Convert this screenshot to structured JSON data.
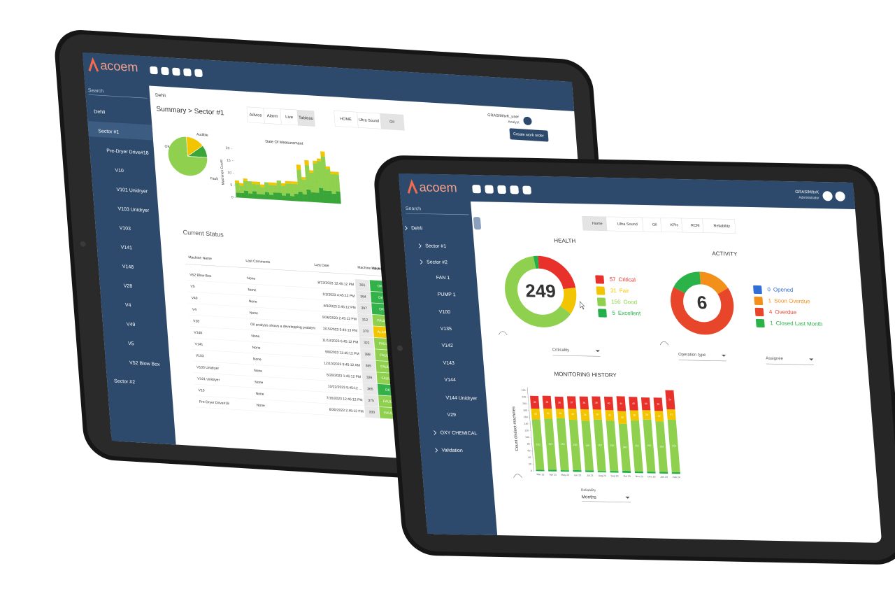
{
  "back": {
    "logo": "acoem",
    "search": "Search",
    "sidebar": [
      "Dehli",
      "Sector #1",
      "Pre-Dryer Drive#18",
      "V10",
      "V101 Unidryer",
      "V103 Unidryer",
      "V103",
      "V141",
      "V148",
      "V28",
      "V4",
      "V49",
      "V5",
      "V52 Blow Box",
      "Sector #2"
    ],
    "breadcrumb": "Dehli",
    "title": "Summary > Sector #1",
    "tabs": [
      "Advice",
      "Alarm",
      "Live",
      "Tableau"
    ],
    "views": [
      "HOME",
      "Ultra Sound",
      "Oil"
    ],
    "user": "GRASIM/tvK_user",
    "role": "Analyst",
    "button": "Create work order",
    "pie": {
      "type": "pie",
      "labels": [
        "Audible",
        "OK",
        "Fault"
      ],
      "values": [
        15,
        10,
        75
      ],
      "colors": [
        "#f2c500",
        "#3aa63a",
        "#8fd14f"
      ]
    },
    "area_chart": {
      "type": "bar",
      "title": "Date Of Measurement",
      "ylabel": "Machines Count",
      "ylim": [
        0,
        20
      ],
      "yticks": [
        0,
        5,
        10,
        15,
        20
      ],
      "series": [
        {
          "color": "#3aa63a",
          "values": [
            2,
            2,
            3,
            2,
            3,
            2,
            2,
            3,
            2,
            3,
            3,
            2,
            3,
            2,
            3,
            4,
            3,
            5,
            4,
            4,
            6,
            5,
            5,
            4,
            5
          ]
        },
        {
          "color": "#8fd14f",
          "values": [
            4,
            3,
            4,
            5,
            3,
            4,
            3,
            4,
            4,
            3,
            5,
            4,
            4,
            5,
            4,
            9,
            6,
            10,
            8,
            12,
            11,
            14,
            9,
            8,
            7
          ]
        },
        {
          "color": "#f2c500",
          "values": [
            1,
            1,
            1,
            0,
            1,
            1,
            1,
            0,
            1,
            1,
            0,
            1,
            1,
            1,
            1,
            2,
            1,
            2,
            1,
            1,
            1,
            2,
            1,
            1,
            1
          ]
        }
      ]
    },
    "status_title": "Current Status",
    "table": {
      "header": [
        "Machine Name",
        "Last Comments",
        "Last Date",
        "Machine Value",
        "Machine Status"
      ],
      "rows": [
        [
          "V52 Blow Box",
          "None",
          "8/13/2023 12:45:12 PM",
          "391",
          "OK"
        ],
        [
          "V5",
          "None",
          "1/2/2023 4:45:12 PM",
          "364",
          "OK"
        ],
        [
          "V49",
          "None",
          "4/9/2023 2:45:12 PM",
          "397",
          "OK"
        ],
        [
          "V4",
          "None",
          "9/26/2023 2:45:12 PM",
          "312",
          "FAULT"
        ],
        [
          "V28",
          "Oil analysis shows a developping problem",
          "2/15/2023 5:45:13 PM",
          "370",
          "ALARM"
        ],
        [
          "V148",
          "None",
          "11/13/2023 6:45:12 PM",
          "322",
          "FAULT"
        ],
        [
          "V141",
          "None",
          "9/8/2023 11:45:12 PM",
          "388",
          "FAULT"
        ],
        [
          "V103",
          "None",
          "12/10/2023 9:45:12 AM",
          "365",
          "FAULT"
        ],
        [
          "V103 Unidryer",
          "None",
          "5/28/2023 1:45:12 PM",
          "326",
          "FAULT"
        ],
        [
          "V101 Unidryer",
          "None",
          "10/22/2023 9:45:12 ...",
          "365",
          "OK"
        ],
        [
          "V10",
          "None",
          "7/16/2023 12:45:12 PM",
          "375",
          "FAULT"
        ],
        [
          "Pre-Dryer Drive#18",
          "None",
          "8/30/2023 2:45:12 PM",
          "333",
          "FAULT"
        ]
      ]
    }
  },
  "front": {
    "logo": "acoem",
    "search": "Search",
    "sidebar": [
      "Dehli",
      "Sector #1",
      "Sector #2",
      "FAN 1",
      "PUMP 1",
      "V100",
      "V135",
      "V142",
      "V143",
      "V144",
      "V144 Unidryer",
      "V29",
      "OXY CHEMICAL",
      "Validation"
    ],
    "tabs": [
      "Home",
      "Ultra Sound",
      "Oil",
      "KPIs",
      "RCM",
      "Reliability"
    ],
    "user": "GRASIM/tvK",
    "role": "Administrator",
    "health": {
      "type": "donut",
      "title": "HEALTH",
      "total": 249,
      "names": [
        "Critical",
        "Fair",
        "Good",
        "Excellent"
      ],
      "values": [
        57,
        31,
        156,
        5
      ],
      "colors": [
        "#e8312b",
        "#f2c500",
        "#8fd14f",
        "#23b04a"
      ]
    },
    "activity": {
      "type": "donut",
      "title": "ACTIVITY",
      "total": 6,
      "names": [
        "Opened",
        "Soon Overdue",
        "Overdue",
        "Closed Last Month"
      ],
      "values": [
        0,
        1,
        4,
        1
      ],
      "colors": [
        "#2f6fd6",
        "#f39019",
        "#e8462b",
        "#2bb34a"
      ]
    },
    "filters": [
      "Criticality",
      "Operation type",
      "Assignee"
    ],
    "monitoring": {
      "type": "stacked-bar",
      "title": "MONITORING HISTORY",
      "ylabel": "Count distinct machines",
      "categories": [
        "Mar 23",
        "Apr 23",
        "May 23",
        "Jun 23",
        "Jul 23",
        "Aug 23",
        "Sep 23",
        "Oct 23",
        "Nov 23",
        "Dec 23",
        "Jan 24",
        "Feb 24"
      ],
      "ylim": [
        0,
        250
      ],
      "yticks": [
        0,
        20,
        40,
        60,
        80,
        100,
        120,
        140,
        160,
        180,
        200,
        220,
        240
      ],
      "series": [
        {
          "name": "Excellent",
          "color": "#23b04a",
          "values": [
            4,
            5,
            4,
            5,
            5,
            4,
            5,
            6,
            5,
            5,
            5,
            5
          ]
        },
        {
          "name": "Good",
          "color": "#8fd14f",
          "values": [
            150,
            152,
            155,
            150,
            148,
            153,
            150,
            140,
            152,
            155,
            150,
            156
          ]
        },
        {
          "name": "Fair",
          "color": "#f2c500",
          "values": [
            32,
            30,
            28,
            33,
            34,
            30,
            31,
            38,
            30,
            28,
            32,
            31
          ]
        },
        {
          "name": "Critical",
          "color": "#e8312b",
          "values": [
            38,
            38,
            36,
            37,
            38,
            39,
            40,
            44,
            40,
            38,
            39,
            57
          ]
        }
      ]
    },
    "period_label": "Reliability",
    "period": "Months"
  }
}
